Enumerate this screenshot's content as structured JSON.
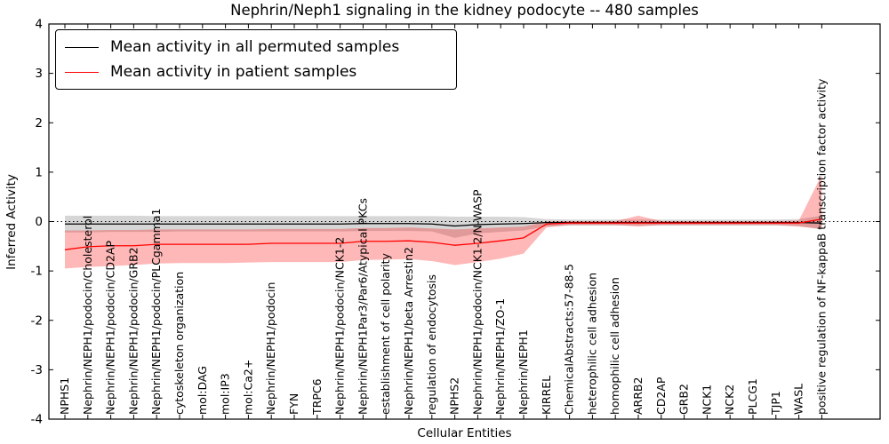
{
  "figure": {
    "title": "Nephrin/Neph1 signaling in the kidney podocyte -- 480 samples",
    "xlabel": "Cellular Entities",
    "ylabel": "Inferred Activity"
  },
  "legend": {
    "items": [
      {
        "label": "Mean activity in all permuted samples",
        "color": "#000000"
      },
      {
        "label": "Mean activity in patient samples",
        "color": "#ff0000"
      }
    ]
  },
  "chart_data": {
    "type": "line",
    "title": "Nephrin/Neph1 signaling in the kidney podocyte -- 480 samples",
    "xlabel": "Cellular Entities",
    "ylabel": "Inferred Activity",
    "ylim": [
      -4,
      4
    ],
    "yticks": [
      -4,
      -3,
      -2,
      -1,
      0,
      1,
      2,
      3,
      4
    ],
    "grid": false,
    "legend_position": "upper left",
    "reference_line": {
      "y": 0,
      "style": "dotted",
      "color": "#000000"
    },
    "categories": [
      "NPHS1",
      "Nephrin/NEPH1/podocin/Cholesterol",
      "Nephrin/NEPH1/podocin/CD2AP",
      "Nephrin/NEPH1/podocin/GRB2",
      "Nephrin/NEPH1/podocin/PLCgamma1",
      "cytoskeleton organization",
      "mol:DAG",
      "mol:IP3",
      "mol:Ca2+",
      "Nephrin/NEPH1/podocin",
      "FYN",
      "TRPC6",
      "Nephrin/NEPH1/podocin/NCK1-2",
      "Nephrin/NEPH1Par3/Par6/Atypical PKCs",
      "establishment of cell polarity",
      "Nephrin/NEPH1/beta Arrestin2",
      "regulation of endocytosis",
      "NPHS2",
      "Nephrin/NEPH1/podocin/NCK1-2/N-WASP",
      "Nephrin/NEPH1/ZO-1",
      "Nephrin/NEPH1",
      "KIRREL",
      "ChemicalAbstracts:57-88-5",
      "heterophilic cell adhesion",
      "homophilic cell adhesion",
      "ARRB2",
      "CD2AP",
      "GRB2",
      "NCK1",
      "NCK2",
      "PLCG1",
      "TJP1",
      "WASL",
      "positive regulation of NF-kappaB transcription factor activity"
    ],
    "series": [
      {
        "name": "Mean activity in all permuted samples",
        "color": "#000000",
        "band_color": "rgba(0,0,0,0.16)",
        "values": [
          -0.05,
          -0.05,
          -0.05,
          -0.05,
          -0.05,
          -0.05,
          -0.05,
          -0.05,
          -0.05,
          -0.05,
          -0.05,
          -0.05,
          -0.05,
          -0.04,
          -0.04,
          -0.04,
          -0.05,
          -0.09,
          -0.06,
          -0.05,
          -0.04,
          -0.02,
          -0.02,
          -0.02,
          -0.02,
          -0.02,
          -0.02,
          -0.02,
          -0.02,
          -0.02,
          -0.02,
          -0.02,
          -0.02,
          -0.03
        ],
        "band_upper": [
          0.12,
          0.12,
          0.12,
          0.12,
          0.11,
          0.11,
          0.11,
          0.11,
          0.11,
          0.11,
          0.11,
          0.11,
          0.11,
          0.11,
          0.11,
          0.11,
          0.11,
          0.1,
          0.1,
          0.1,
          0.09,
          0.05,
          0.04,
          0.04,
          0.04,
          0.04,
          0.04,
          0.04,
          0.04,
          0.04,
          0.04,
          0.04,
          0.05,
          0.12
        ],
        "band_lower": [
          -0.22,
          -0.22,
          -0.21,
          -0.21,
          -0.21,
          -0.2,
          -0.2,
          -0.2,
          -0.2,
          -0.2,
          -0.2,
          -0.2,
          -0.2,
          -0.19,
          -0.19,
          -0.19,
          -0.2,
          -0.33,
          -0.24,
          -0.21,
          -0.18,
          -0.1,
          -0.08,
          -0.08,
          -0.08,
          -0.08,
          -0.08,
          -0.08,
          -0.08,
          -0.08,
          -0.08,
          -0.08,
          -0.09,
          -0.16
        ]
      },
      {
        "name": "Mean activity in patient samples",
        "color": "#ff0000",
        "band_color": "rgba(255,0,0,0.28)",
        "values": [
          -0.57,
          -0.51,
          -0.49,
          -0.49,
          -0.46,
          -0.46,
          -0.46,
          -0.46,
          -0.46,
          -0.44,
          -0.44,
          -0.44,
          -0.44,
          -0.4,
          -0.4,
          -0.39,
          -0.42,
          -0.48,
          -0.44,
          -0.39,
          -0.33,
          -0.05,
          -0.03,
          -0.03,
          -0.03,
          -0.03,
          -0.03,
          -0.03,
          -0.03,
          -0.03,
          -0.03,
          -0.03,
          -0.03,
          0.05
        ],
        "band_upper": [
          -0.18,
          -0.18,
          -0.17,
          -0.17,
          -0.16,
          -0.16,
          -0.16,
          -0.16,
          -0.16,
          -0.15,
          -0.15,
          -0.15,
          -0.15,
          -0.13,
          -0.13,
          -0.12,
          -0.14,
          -0.16,
          -0.14,
          -0.12,
          -0.1,
          0.0,
          0.01,
          0.01,
          0.01,
          0.12,
          0.01,
          0.01,
          0.01,
          0.01,
          0.01,
          0.01,
          0.02,
          0.95
        ],
        "band_lower": [
          -0.95,
          -0.92,
          -0.9,
          -0.88,
          -0.85,
          -0.84,
          -0.84,
          -0.84,
          -0.83,
          -0.82,
          -0.82,
          -0.82,
          -0.82,
          -0.78,
          -0.77,
          -0.76,
          -0.8,
          -0.88,
          -0.82,
          -0.75,
          -0.65,
          -0.12,
          -0.07,
          -0.07,
          -0.07,
          -0.1,
          -0.07,
          -0.07,
          -0.07,
          -0.07,
          -0.07,
          -0.07,
          -0.1,
          -0.15
        ]
      }
    ]
  }
}
